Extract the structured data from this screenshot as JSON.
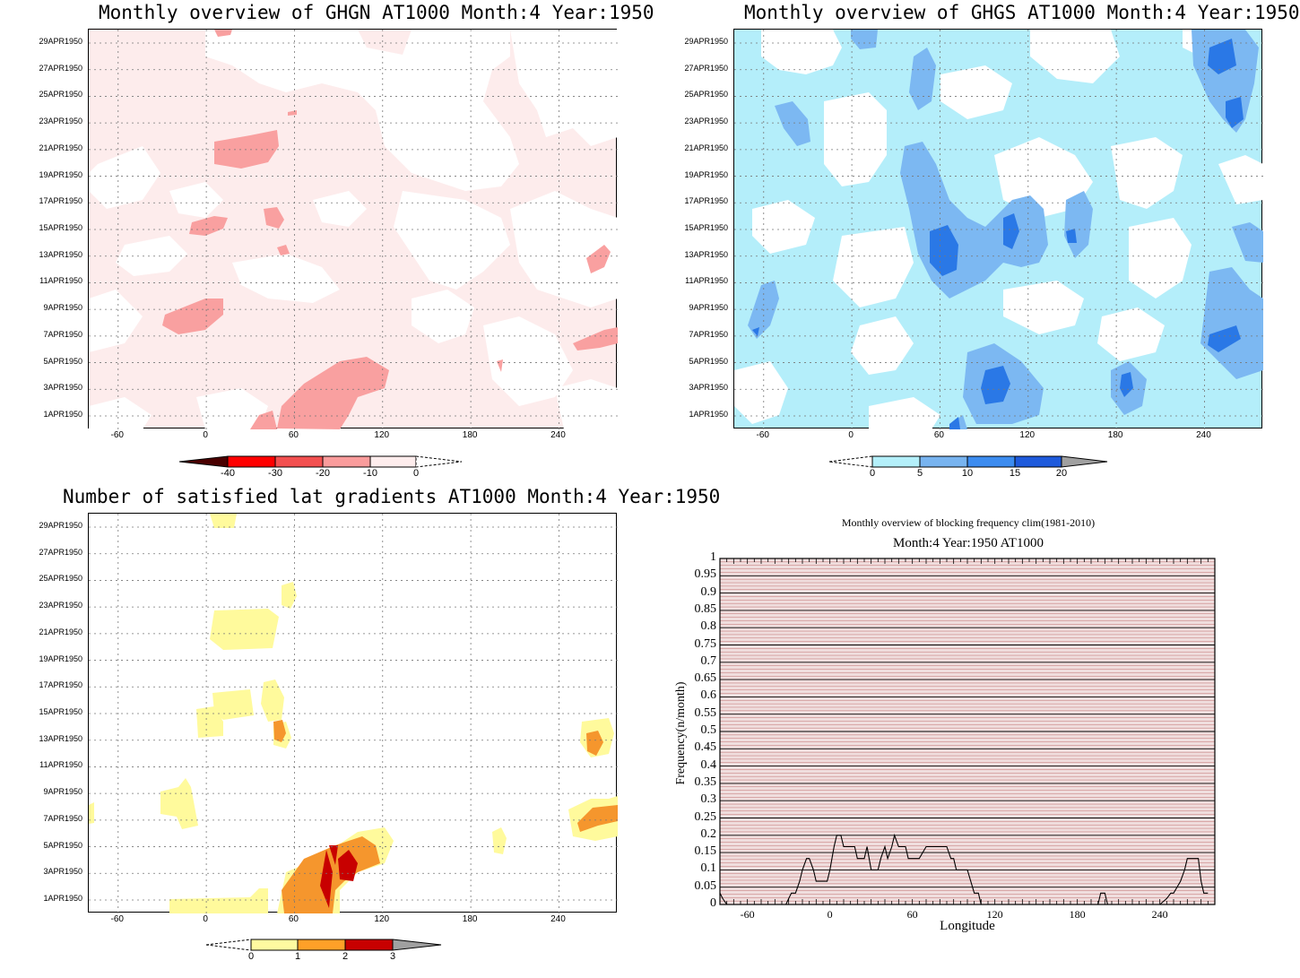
{
  "chart_data": [
    {
      "type": "heatmap",
      "title": "Monthly overview of GHGN AT1000 Month:4 Year:1950",
      "xticks": [
        "-60",
        "0",
        "60",
        "120",
        "180",
        "240"
      ],
      "xtick_values": [
        -60,
        0,
        60,
        120,
        180,
        240
      ],
      "xlim": [
        -80,
        280
      ],
      "yticks": [
        "1APR1950",
        "3APR1950",
        "5APR1950",
        "7APR1950",
        "9APR1950",
        "11APR1950",
        "13APR1950",
        "15APR1950",
        "17APR1950",
        "19APR1950",
        "21APR1950",
        "23APR1950",
        "25APR1950",
        "27APR1950",
        "29APR1950"
      ],
      "colorbar": {
        "levels": [
          "-40",
          "-30",
          "-20",
          "-10",
          "0"
        ],
        "colors": [
          "#4a0000",
          "#ff0000",
          "#f35050",
          "#fa9c9c",
          "#feeded"
        ]
      },
      "colors": {
        "light": "#fdecec",
        "mid": "#f9a0a0"
      }
    },
    {
      "type": "heatmap",
      "title": "Monthly overview of GHGS AT1000 Month:4 Year:1950",
      "xticks": [
        "-60",
        "0",
        "60",
        "120",
        "180",
        "240"
      ],
      "xtick_values": [
        -60,
        0,
        60,
        120,
        180,
        240
      ],
      "xlim": [
        -80,
        280
      ],
      "yticks": [
        "1APR1950",
        "3APR1950",
        "5APR1950",
        "7APR1950",
        "9APR1950",
        "11APR1950",
        "13APR1950",
        "15APR1950",
        "17APR1950",
        "19APR1950",
        "21APR1950",
        "23APR1950",
        "25APR1950",
        "27APR1950",
        "29APR1950"
      ],
      "colorbar": {
        "levels": [
          "0",
          "5",
          "10",
          "15",
          "20"
        ],
        "colors": [
          "#b4f0fa",
          "#78b4f0",
          "#3c8cf0",
          "#1e5adc",
          "#a0a0a0"
        ]
      },
      "colors": {
        "light": "#b4eefa",
        "mid": "#7cb8f2",
        "dark": "#2a78e6"
      }
    },
    {
      "type": "heatmap",
      "title": "Number of satisfied lat gradients AT1000 Month:4 Year:1950",
      "xticks": [
        "-60",
        "0",
        "60",
        "120",
        "180",
        "240"
      ],
      "xtick_values": [
        -60,
        0,
        60,
        120,
        180,
        240
      ],
      "xlim": [
        -80,
        280
      ],
      "yticks": [
        "1APR1950",
        "3APR1950",
        "5APR1950",
        "7APR1950",
        "9APR1950",
        "11APR1950",
        "13APR1950",
        "15APR1950",
        "17APR1950",
        "19APR1950",
        "21APR1950",
        "23APR1950",
        "25APR1950",
        "27APR1950",
        "29APR1950"
      ],
      "colorbar": {
        "levels": [
          "0",
          "1",
          "2",
          "3"
        ],
        "colors": [
          "#fffaa0",
          "#ffa028",
          "#c80000",
          "#a0a0a0"
        ]
      },
      "colors": {
        "yellow": "#fffa9c",
        "orange": "#f5962d",
        "red": "#c80000"
      }
    },
    {
      "type": "line",
      "title": "Monthly overview of blocking frequency clim(1981-2010)",
      "subtitle": "Month:4 Year:1950  AT1000",
      "xlabel": "Longitude",
      "ylabel": "Frequency(n/month)",
      "xticks": [
        "-60",
        "0",
        "60",
        "120",
        "180",
        "240"
      ],
      "xtick_values": [
        -60,
        0,
        60,
        120,
        180,
        240
      ],
      "yticks": [
        "0",
        "0.05",
        "0.1",
        "0.15",
        "0.2",
        "0.25",
        "0.3",
        "0.35",
        "0.4",
        "0.45",
        "0.5",
        "0.55",
        "0.6",
        "0.65",
        "0.7",
        "0.75",
        "0.8",
        "0.85",
        "0.9",
        "0.95",
        "1"
      ],
      "xlim": [
        -80,
        280
      ],
      "ylim": [
        0,
        1
      ],
      "series": [
        {
          "x": [
            -80,
            -78,
            -75,
            -70,
            -60,
            -50,
            -40,
            -35,
            -32,
            -30,
            -28,
            -25,
            -22,
            -20,
            -17,
            -15,
            -12,
            -10,
            -8,
            -5,
            -2,
            0,
            3,
            5,
            8,
            10,
            12,
            15,
            18,
            20,
            22,
            25,
            27,
            30,
            32,
            35,
            37,
            40,
            42,
            45,
            47,
            50,
            52,
            55,
            57,
            60,
            62,
            65,
            70,
            75,
            80,
            85,
            88,
            90,
            92,
            95,
            100,
            105,
            108,
            110,
            112,
            115,
            120,
            140,
            160,
            180,
            195,
            197,
            200,
            202,
            205,
            210,
            220,
            240,
            245,
            248,
            250,
            255,
            258,
            260,
            263,
            265,
            268,
            270,
            272,
            275
          ],
          "y": [
            0.033,
            0.017,
            0,
            0,
            0,
            0,
            0,
            0,
            0,
            0.017,
            0.033,
            0.033,
            0.067,
            0.1,
            0.133,
            0.133,
            0.1,
            0.067,
            0.067,
            0.067,
            0.067,
            0.1,
            0.167,
            0.2,
            0.2,
            0.167,
            0.167,
            0.167,
            0.167,
            0.133,
            0.133,
            0.133,
            0.167,
            0.1,
            0.1,
            0.1,
            0.133,
            0.167,
            0.133,
            0.167,
            0.2,
            0.167,
            0.167,
            0.167,
            0.133,
            0.133,
            0.133,
            0.133,
            0.167,
            0.167,
            0.167,
            0.167,
            0.133,
            0.133,
            0.1,
            0.1,
            0.1,
            0.033,
            0.033,
            0,
            0,
            0,
            0,
            0,
            0,
            0,
            0,
            0.033,
            0.033,
            0,
            0,
            0,
            0,
            0,
            0.017,
            0.033,
            0.033,
            0.067,
            0.1,
            0.133,
            0.133,
            0.133,
            0.133,
            0.067,
            0.033,
            0.033
          ]
        }
      ],
      "colors": {
        "background": "#f0dede",
        "grid_major": "#000000",
        "grid_minor": "#c07070",
        "line": "#000000"
      }
    }
  ]
}
